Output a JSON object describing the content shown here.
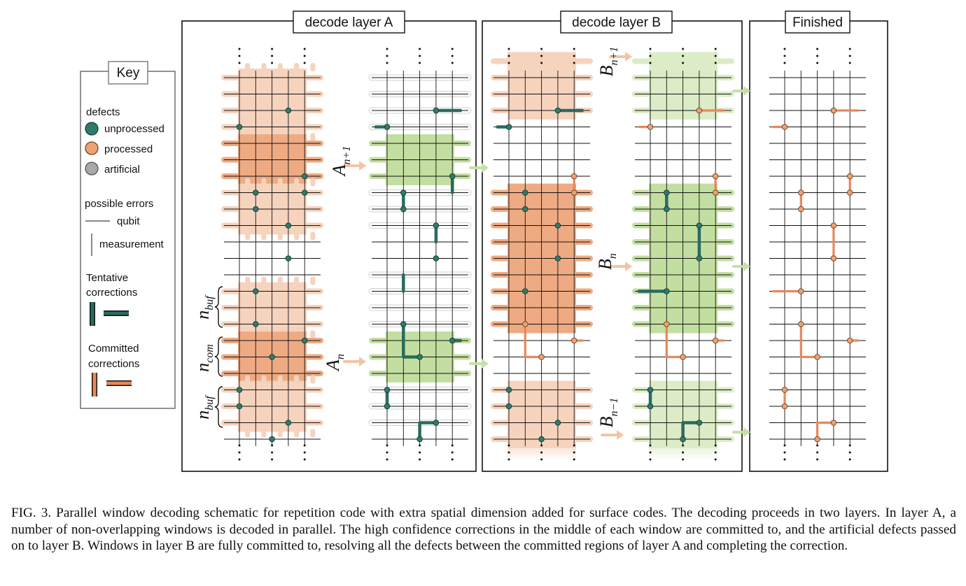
{
  "panels": {
    "layer_a": "decode layer A",
    "layer_b": "decode layer B",
    "finished": "Finished"
  },
  "key": {
    "title": "Key",
    "defects_heading": "defects",
    "defect_types": [
      {
        "label": "unprocessed",
        "color": "#2e7b6b"
      },
      {
        "label": "processed",
        "color": "#f0a070"
      },
      {
        "label": "artificial",
        "color": "#a8a8a8"
      }
    ],
    "errors_heading": "possible errors",
    "qubit_label": "qubit",
    "measurement_label": "measurement",
    "tentative_heading_1": "Tentative",
    "tentative_heading_2": "corrections",
    "committed_heading_1": "Committed",
    "committed_heading_2": "corrections"
  },
  "labels": {
    "a_next": {
      "base": "A",
      "sub": "n+1"
    },
    "a_cur": {
      "base": "A",
      "sub": "n"
    },
    "b_next": {
      "base": "B",
      "sub": "n+1"
    },
    "b_cur": {
      "base": "B",
      "sub": "n"
    },
    "b_prev": {
      "base": "B",
      "sub": "n−1"
    },
    "n_buf_top": {
      "base": "n",
      "sub": "buf"
    },
    "n_com": {
      "base": "n",
      "sub": "com"
    },
    "n_buf_bot": {
      "base": "n",
      "sub": "buf"
    }
  },
  "colors": {
    "orange_light": "#f6d3bd",
    "orange_dark": "#eeaa82",
    "green_light": "#dcecc6",
    "green_dark": "#c3dea1",
    "defect_unprocessed": "#2e7b6b",
    "defect_processed": "#f0a070",
    "correction_tentative": "#2a6b5e",
    "correction_committed": "#e8875a"
  },
  "caption": "FIG. 3.  Parallel window decoding schematic for repetition code with extra spatial dimension added for surface codes. The decoding proceeds in two layers. In layer A, a number of non-overlapping windows is decoded in parallel. The high confidence corrections in the middle of each window are committed to, and the artificial defects passed on to layer B. Windows in layer B are fully committed to, resolving all the defects between the committed regions of layer A and completing the correction."
}
